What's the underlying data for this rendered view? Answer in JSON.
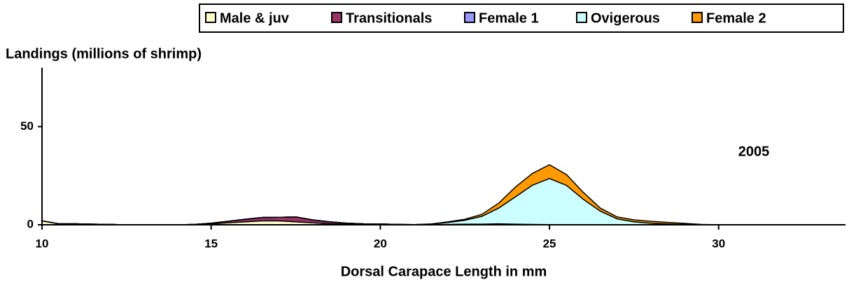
{
  "chart_data": {
    "type": "stacked-area",
    "y_label": "Landings (millions of shrimp)",
    "x_label": "Dorsal Carapace Length in mm",
    "annotation": "2005",
    "x": [
      10,
      10.5,
      11,
      11.5,
      12,
      12.5,
      13,
      13.5,
      14,
      14.5,
      15,
      15.5,
      16,
      16.5,
      17,
      17.5,
      18,
      18.5,
      19,
      19.5,
      20,
      20.5,
      21,
      21.5,
      22,
      22.5,
      23,
      23.5,
      24,
      24.5,
      25,
      25.5,
      26,
      26.5,
      27,
      27.5,
      28,
      28.5,
      29,
      29.5,
      30,
      30.5,
      31,
      31.5,
      32,
      32.5,
      33,
      33.5
    ],
    "series": [
      {
        "name": "Male & juv",
        "color": "#ffffcc",
        "values": [
          2,
          0.5,
          0.5,
          0.3,
          0.2,
          0,
          0,
          0,
          0,
          0.2,
          0.5,
          1,
          1.5,
          2,
          2,
          1.5,
          1,
          0.5,
          0.3,
          0.2,
          0.2,
          0.1,
          0.1,
          0.1,
          0.2,
          0.3,
          0.3,
          0.5,
          0.3,
          0.2,
          0.1,
          0.1,
          0,
          0,
          0,
          0,
          0,
          0,
          0,
          0,
          0,
          0,
          0,
          0,
          0,
          0,
          0,
          0
        ]
      },
      {
        "name": "Transitionals",
        "color": "#993366",
        "values": [
          0,
          0,
          0,
          0,
          0,
          0,
          0,
          0,
          0,
          0,
          0.3,
          0.8,
          1.3,
          1.7,
          1.8,
          2.5,
          1.5,
          1,
          0.5,
          0.3,
          0.2,
          0.1,
          0,
          0,
          0,
          0,
          0,
          0,
          0,
          0,
          0,
          0,
          0,
          0,
          0,
          0,
          0,
          0,
          0,
          0,
          0,
          0,
          0,
          0,
          0,
          0,
          0,
          0
        ]
      },
      {
        "name": "Female 1",
        "color": "#9999ff",
        "values": [
          0,
          0,
          0,
          0,
          0,
          0,
          0,
          0,
          0,
          0,
          0,
          0,
          0,
          0,
          0,
          0,
          0,
          0,
          0,
          0,
          0,
          0,
          0,
          0,
          0,
          0,
          0,
          0,
          0,
          0,
          0,
          0,
          0,
          0,
          0,
          0,
          0,
          0,
          0,
          0,
          0,
          0,
          0,
          0,
          0,
          0,
          0,
          0
        ]
      },
      {
        "name": "Ovigerous",
        "color": "#ccffff",
        "values": [
          0,
          0,
          0,
          0,
          0,
          0,
          0,
          0,
          0,
          0,
          0,
          0,
          0,
          0,
          0,
          0,
          0,
          0,
          0,
          0,
          0,
          0,
          0,
          0.3,
          1,
          2,
          4,
          8,
          14,
          20,
          23.5,
          20,
          13,
          7,
          3,
          1.5,
          0.8,
          0.4,
          0.2,
          0,
          0,
          0,
          0,
          0,
          0,
          0,
          0,
          0
        ]
      },
      {
        "name": "Female 2",
        "color": "#ff9900",
        "values": [
          0,
          0,
          0,
          0,
          0,
          0,
          0,
          0,
          0,
          0,
          0,
          0,
          0,
          0,
          0,
          0,
          0,
          0,
          0,
          0,
          0,
          0,
          0,
          0,
          0.3,
          0.5,
          1,
          2.5,
          5,
          6,
          7,
          5.5,
          3.5,
          1.5,
          1,
          1,
          1,
          0.8,
          0.5,
          0.2,
          0,
          0,
          0,
          0,
          0,
          0,
          0,
          0
        ]
      }
    ],
    "xlim": [
      10,
      33.75
    ],
    "xticks": [
      10,
      15,
      20,
      25,
      30
    ],
    "ylim": [
      0,
      80
    ],
    "yticks": [
      0,
      50
    ]
  }
}
